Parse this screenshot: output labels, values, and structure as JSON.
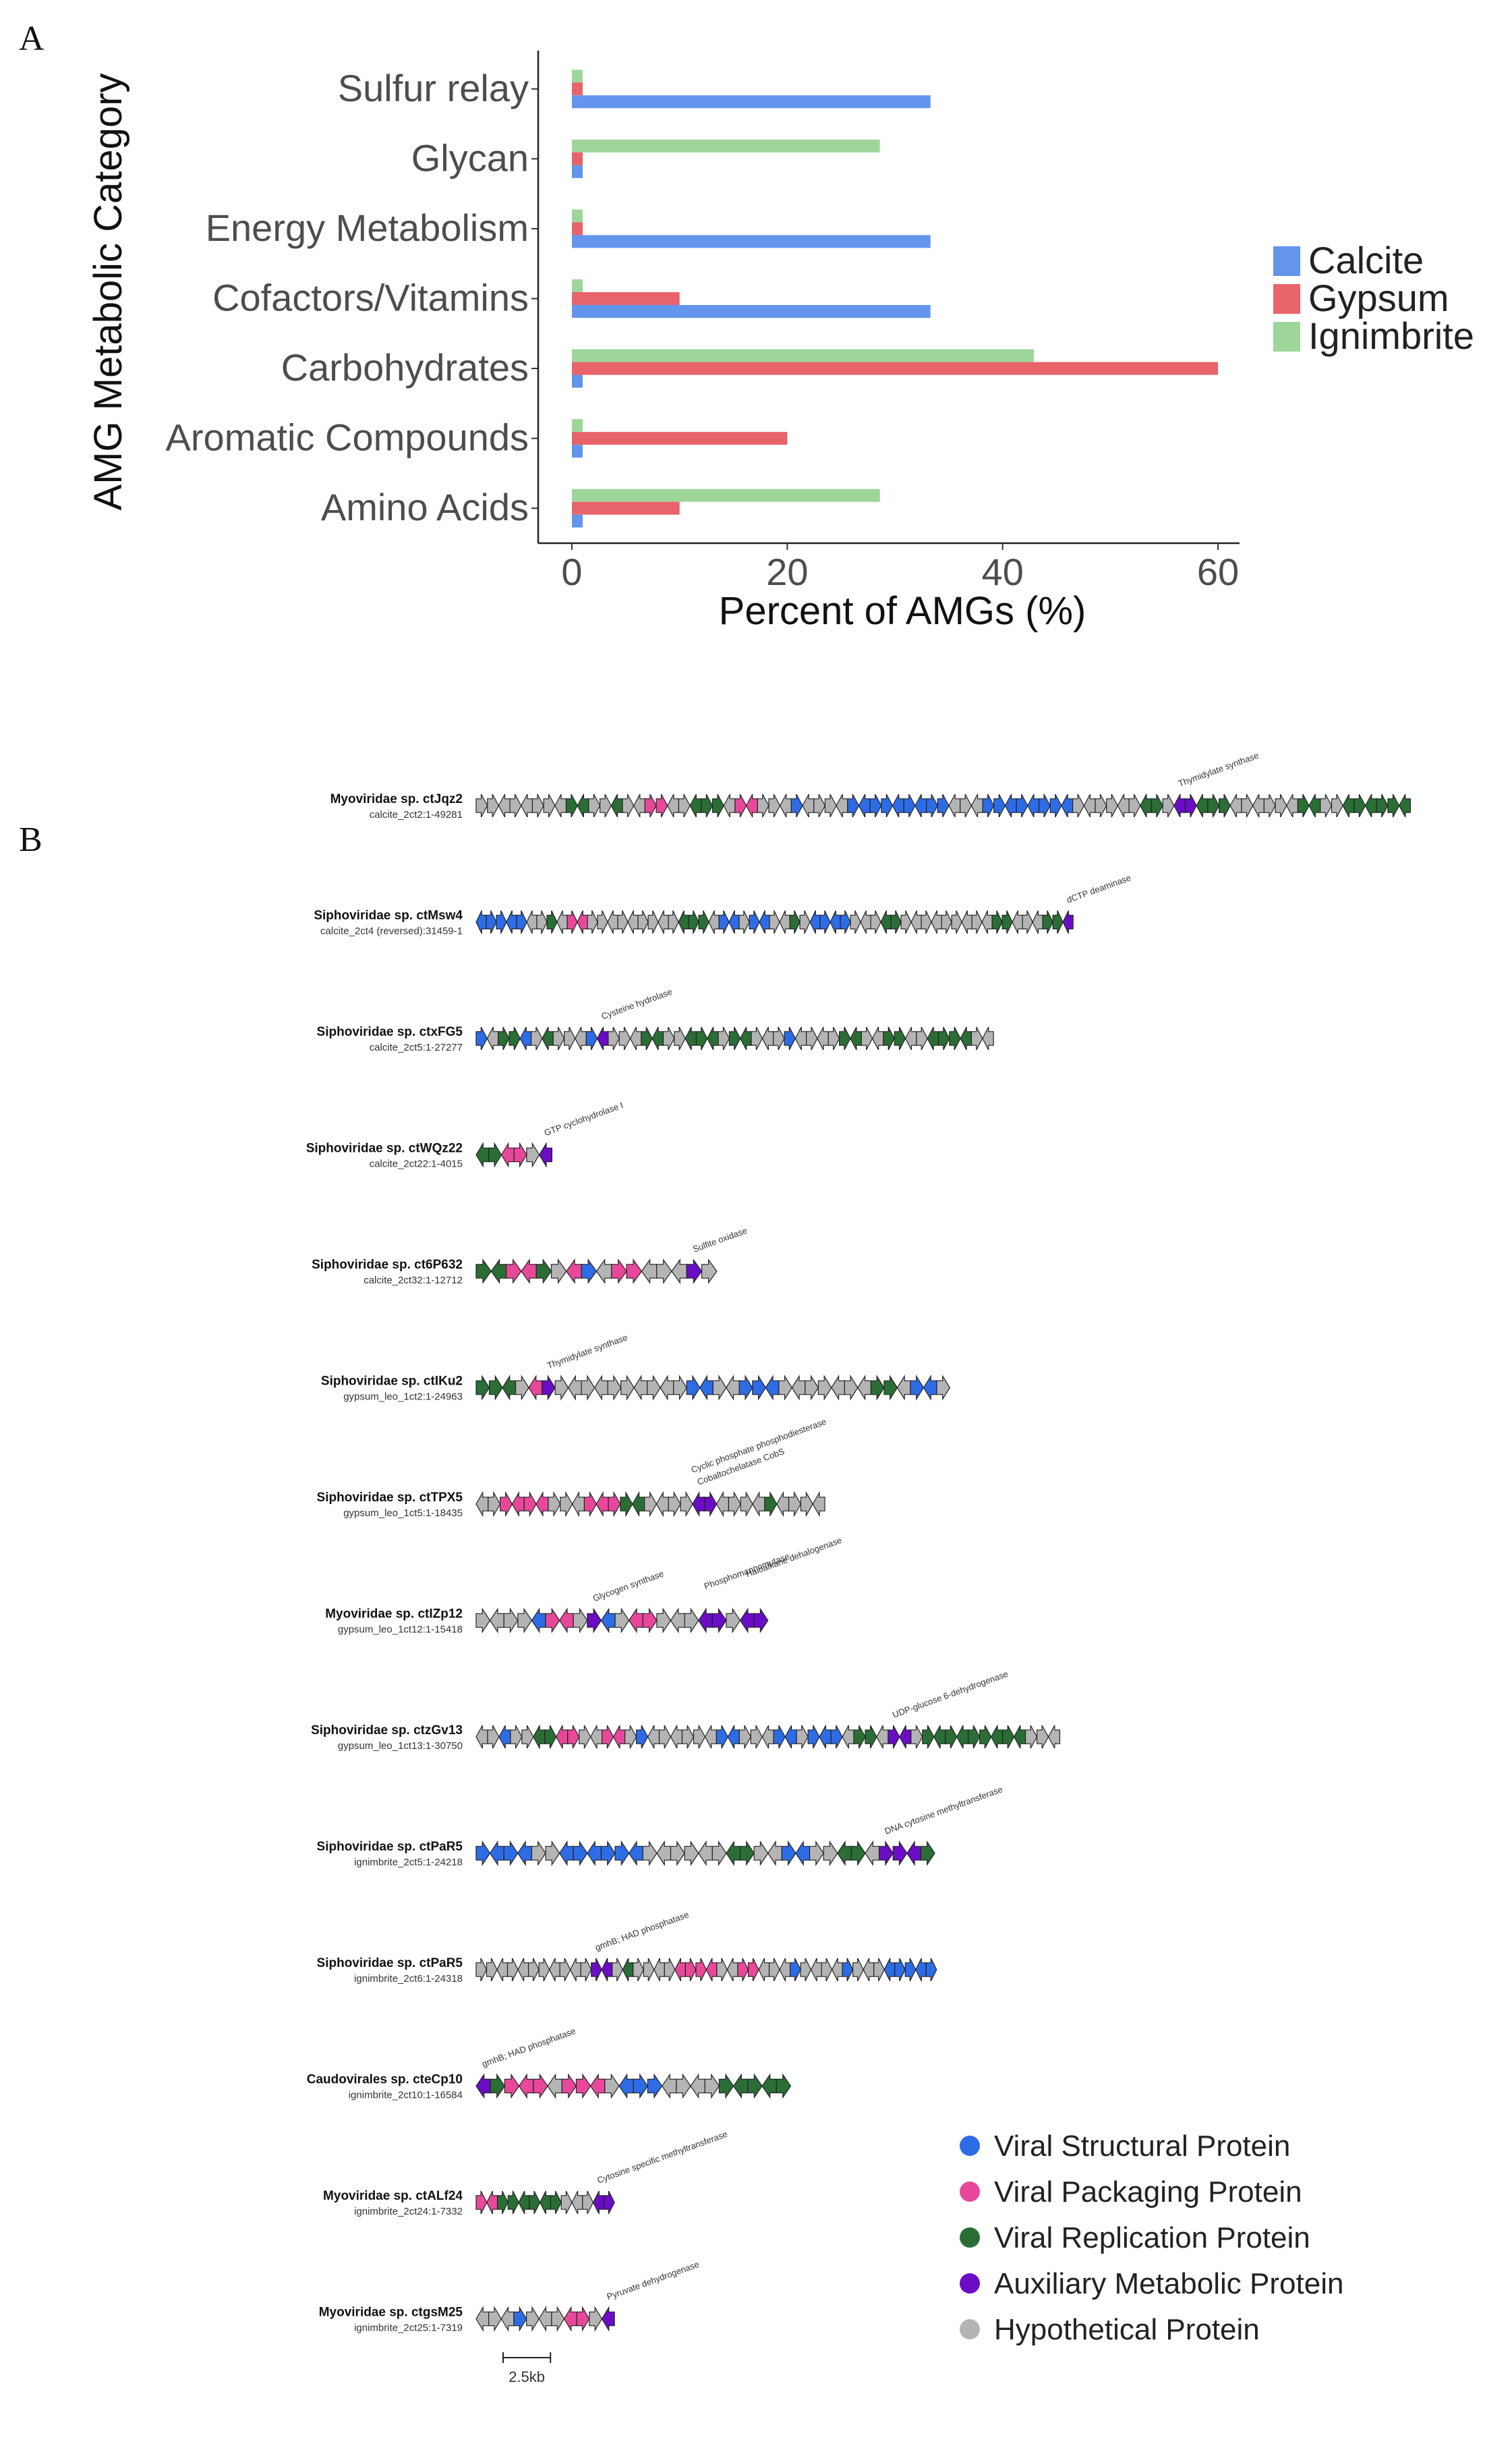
{
  "panels": {
    "a_label": "A",
    "b_label": "B"
  },
  "chart_data": [
    {
      "type": "bar",
      "orientation": "horizontal",
      "categories": [
        "Sulfur relay",
        "Glycan",
        "Energy Metabolism",
        "Cofactors/Vitamins",
        "Carbohydrates",
        "Aromatic Compounds",
        "Amino Acids"
      ],
      "series": [
        {
          "name": "Calcite",
          "color": "#6495ED",
          "values": [
            33.3,
            1,
            33.3,
            33.3,
            1,
            1,
            1
          ]
        },
        {
          "name": "Gypsum",
          "color": "#E8636A",
          "values": [
            1,
            1,
            1,
            10,
            60,
            20,
            10
          ]
        },
        {
          "name": "Ignimbrite",
          "color": "#9ED69A",
          "values": [
            1,
            28.6,
            1,
            1,
            42.9,
            1,
            28.6
          ]
        }
      ],
      "xlabel": "Percent of AMGs (%)",
      "ylabel": "AMG Metabolic Category",
      "xlim": [
        0,
        62
      ],
      "xticks": [
        "0",
        "20",
        "40",
        "60"
      ],
      "grid": false,
      "legend_position": "right"
    },
    {
      "type": "gene-map",
      "colors": {
        "S": "#2E6CE6",
        "P": "#E8489A",
        "R": "#2A6E36",
        "A": "#6A0DC4",
        "H": "#B4B4B4"
      },
      "legend": [
        {
          "key": "S",
          "label": "Viral Structural Protein"
        },
        {
          "key": "P",
          "label": "Viral Packaging Protein"
        },
        {
          "key": "R",
          "label": "Viral Replication Protein"
        },
        {
          "key": "A",
          "label": "Auxiliary Metabolic Protein"
        },
        {
          "key": "H",
          "label": "Hypothetical Protein"
        }
      ],
      "scale_bar_label": "2.5kb",
      "scale_bar_kb": 2.5,
      "genomes": [
        {
          "name": "Myoviridae sp. ctJqz2",
          "sub": "calcite_2ct2:1-49281",
          "length_kb": 49.3,
          "annotations": [
            "Thymidylate synthase"
          ],
          "genes": "HHHHHHHHRRHHRHHPPHHRRRHPPHHHSHHHHSSSSSSSSSHHHSSSSSSSSHHHHHHRRHAARRRHHHHHHRRHHRRRRRR"
        },
        {
          "name": "Siphoviridae sp. ctMsw4",
          "sub": "calcite_2ct4 (reversed):31459-1",
          "length_kb": 31.5,
          "annotations": [
            "dCTP deaminase"
          ],
          "genes": "SSSSSHHRHPPHHHHHHHHHRRRHSSHSSHHRHSSSSHHHRRHHHHHHHHHRRHHHRRA"
        },
        {
          "name": "Siphoviridae sp. ctxFG5",
          "sub": "calcite_2ct5:1-27277",
          "length_kb": 27.3,
          "annotations": [
            "Cysteine hydrolase"
          ],
          "genes": "SHRRSHRHHHSAHHHRRHHRRRHRRHHHSHHHHRRHHRRHHRRRRHH"
        },
        {
          "name": "Siphoviridae sp. ctWQz22",
          "sub": "calcite_2ct22:1-4015",
          "length_kb": 4.0,
          "annotations": [
            "GTP cyclohydrolase I"
          ],
          "genes": "RRPPHA"
        },
        {
          "name": "Siphoviridae sp. ct6P632",
          "sub": "calcite_2ct32:1-12712",
          "length_kb": 12.7,
          "annotations": [
            "Sulfite oxidase"
          ],
          "genes": "RRPPRHPSHPPHHHAH"
        },
        {
          "name": "Siphoviridae sp. ctIKu2",
          "sub": "gypsum_leo_1ct2:1-24963",
          "length_kb": 25.0,
          "annotations": [
            "Thymidylate synthase"
          ],
          "genes": "RRRHPAHHHHHHHHHHSSHHSSSHHHHHHHRRHSSH"
        },
        {
          "name": "Siphoviridae sp. ctTPX5",
          "sub": "gypsum_leo_1ct5:1-18435",
          "length_kb": 18.4,
          "annotations": [
            "Cobaltochelatase CobS",
            "Cyclic phosphate phosphodiesterase"
          ],
          "genes": "HHPPPPHHHPPPRRHHHHAAHHHHRHHHH"
        },
        {
          "name": "Myoviridae sp. ctIZp12",
          "sub": "gypsum_leo_1ct12:1-15418",
          "length_kb": 15.4,
          "annotations": [
            "Glycogen synthase",
            "Phosphomannomutase",
            "Haloalkane dehalogenase"
          ],
          "genes": "HHHHSPPHASHPPHHHAAHAA"
        },
        {
          "name": "Siphoviridae sp. ctzGv13",
          "sub": "gypsum_leo_1ct13:1-30750",
          "length_kb": 30.8,
          "annotations": [
            "UDP-glucose 6-dehydrogenase"
          ],
          "genes": "HHSHHRRPPHHPPHSHHHHHHSSHHHSSHSSSHRRHAAHRRRRRRRRRHHH"
        },
        {
          "name": "Siphoviridae sp. ctPaR5",
          "sub": "ignimbrite_2ct5:1-24218",
          "length_kb": 24.2,
          "annotations": [
            "DNA cytosine methyltransferase"
          ],
          "genes": "SSSSHHSSSSSSHHHHHHRRHHSSHHRRHAAAR"
        },
        {
          "name": "Siphoviridae sp. ctPaR5",
          "sub": "ignimbrite_2ct6:1-24318",
          "length_kb": 24.3,
          "annotations": [
            "gmhB; HAD phosphatase"
          ],
          "genes": "HHHHHHHHHHHAAHRHHHHPPPPHHPPHHHSHHHHSHHHSSSSS"
        },
        {
          "name": "Caudovirales sp. cteCp10",
          "sub": "ignimbrite_2ct10:1-16584",
          "length_kb": 16.6,
          "annotations": [
            "gmhB; HAD phosphatase"
          ],
          "genes": "ARPPPHPPPHSSSHHHHRRRRR"
        },
        {
          "name": "Myoviridae sp. ctALf24",
          "sub": "ignimbrite_2ct24:1-7332",
          "length_kb": 7.3,
          "annotations": [
            "Cytosine specific methyltransferase"
          ],
          "genes": "PPRRRRRRHHHAA"
        },
        {
          "name": "Myoviridae sp. ctgsM25",
          "sub": "ignimbrite_2ct25:1-7319",
          "length_kb": 7.3,
          "annotations": [
            "Pyruvate dehydrogenase"
          ],
          "genes": "HHHSHHHPPHA"
        }
      ]
    }
  ]
}
